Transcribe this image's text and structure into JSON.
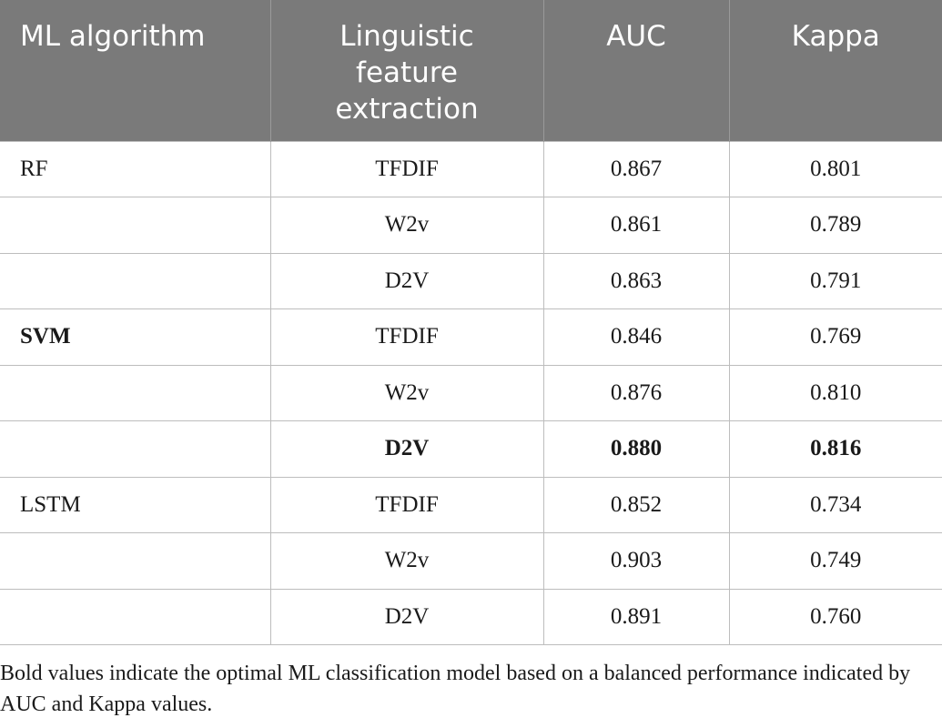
{
  "table": {
    "headers": [
      "ML algorithm",
      "Linguistic feature extraction",
      "AUC",
      "Kappa"
    ],
    "header_lines": {
      "feature": [
        "Linguistic",
        "feature",
        "extraction"
      ]
    },
    "rows": [
      {
        "algorithm": "RF",
        "feature": "TFDIF",
        "auc": "0.867",
        "kappa": "0.801"
      },
      {
        "algorithm": "",
        "feature": "W2v",
        "auc": "0.861",
        "kappa": "0.789"
      },
      {
        "algorithm": "",
        "feature": "D2V",
        "auc": "0.863",
        "kappa": "0.791"
      },
      {
        "algorithm": "SVM",
        "feature": "TFDIF",
        "auc": "0.846",
        "kappa": "0.769"
      },
      {
        "algorithm": "",
        "feature": "W2v",
        "auc": "0.876",
        "kappa": "0.810"
      },
      {
        "algorithm": "",
        "feature": "D2V",
        "auc": "0.880",
        "kappa": "0.816"
      },
      {
        "algorithm": "LSTM",
        "feature": "TFDIF",
        "auc": "0.852",
        "kappa": "0.734"
      },
      {
        "algorithm": "",
        "feature": "W2v",
        "auc": "0.903",
        "kappa": "0.749"
      },
      {
        "algorithm": "",
        "feature": "D2V",
        "auc": "0.891",
        "kappa": "0.760"
      }
    ],
    "header_bg_color": "#7a7a7a",
    "grid_color": "#bdbdbd"
  },
  "footnote": "Bold values indicate the optimal ML classification model based on a balanced performance indicated by AUC and Kappa values."
}
